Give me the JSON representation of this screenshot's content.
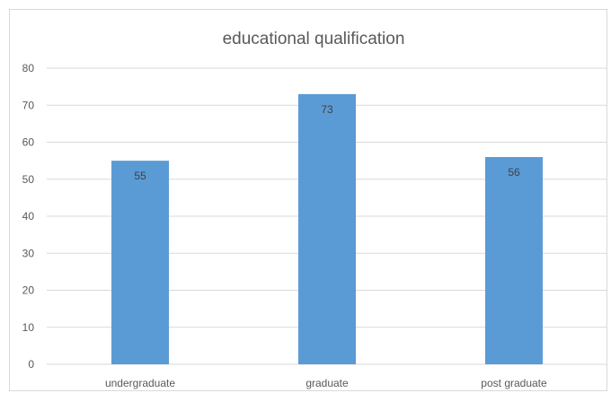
{
  "chart_data": {
    "type": "bar",
    "title": "educational qualification",
    "categories": [
      "undergraduate",
      "graduate",
      "post graduate"
    ],
    "values": [
      55,
      73,
      56
    ],
    "data_labels": [
      "55",
      "73",
      "56"
    ],
    "y_ticks": [
      "0",
      "10",
      "20",
      "30",
      "40",
      "50",
      "60",
      "70",
      "80"
    ],
    "ylim": [
      0,
      80
    ],
    "grid": true,
    "legend": "none",
    "bar_color": "#5b9bd5",
    "gridline_color": "#d9d9d9"
  }
}
